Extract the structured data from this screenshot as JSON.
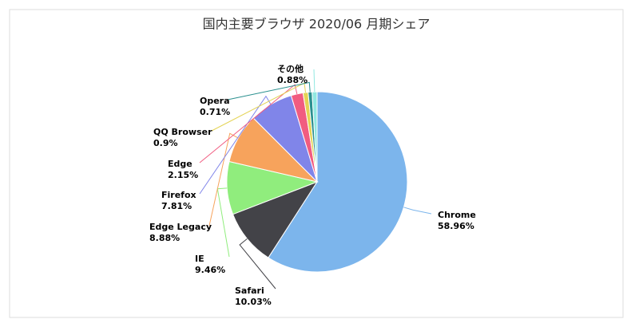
{
  "chart_data": {
    "type": "pie",
    "title": "国内主要ブラウザ 2020/06 月期シェア",
    "categories": [
      "Chrome",
      "Safari",
      "IE",
      "Edge Legacy",
      "Firefox",
      "Edge",
      "QQ Browser",
      "Opera",
      "その他"
    ],
    "values": [
      58.96,
      10.03,
      9.46,
      8.88,
      7.81,
      2.15,
      0.9,
      0.71,
      0.88
    ],
    "value_labels": [
      "58.96%",
      "10.03%",
      "9.46%",
      "8.88%",
      "7.81%",
      "2.15%",
      "0.9%",
      "0.71%",
      "0.88%"
    ],
    "colors": [
      "#7cb5ec",
      "#434348",
      "#90ed7d",
      "#f7a35c",
      "#8085e9",
      "#f15c80",
      "#e4d354",
      "#2b908f",
      "#91e8e1"
    ]
  }
}
